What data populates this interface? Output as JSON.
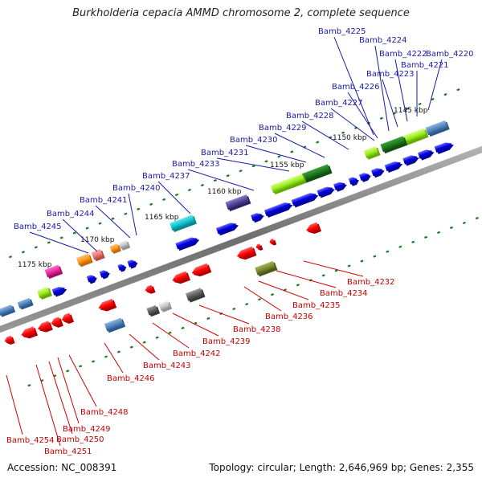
{
  "title": "Burkholderia cepacia AMMD chromosome 2, complete sequence",
  "footer": {
    "accession": "Accession: NC_008391",
    "summary": "Topology: circular; Length: 2,646,969 bp; Genes: 2,355"
  },
  "colors": {
    "forward_label": "#1a1aa6",
    "reverse_label": "#c40000",
    "backbone": "#808080",
    "tick": "#1f7a1f"
  },
  "kbp_marks": [
    "1145 kbp",
    "1150 kbp",
    "1155 kbp",
    "1160 kbp",
    "1165 kbp",
    "1170 kbp",
    "1175 kbp"
  ],
  "forward_genes": [
    "Bamb_4220",
    "Bamb_4221",
    "Bamb_4222",
    "Bamb_4223",
    "Bamb_4224",
    "Bamb_4225",
    "Bamb_4226",
    "Bamb_4227",
    "Bamb_4228",
    "Bamb_4229",
    "Bamb_4230",
    "Bamb_4231",
    "Bamb_4233",
    "Bamb_4237",
    "Bamb_4240",
    "Bamb_4241",
    "Bamb_4244",
    "Bamb_4245"
  ],
  "reverse_genes": [
    "Bamb_4232",
    "Bamb_4234",
    "Bamb_4235",
    "Bamb_4236",
    "Bamb_4238",
    "Bamb_4239",
    "Bamb_4242",
    "Bamb_4243",
    "Bamb_4246",
    "Bamb_4248",
    "Bamb_4249",
    "Bamb_4250",
    "Bamb_4251",
    "Bamb_4254"
  ]
}
